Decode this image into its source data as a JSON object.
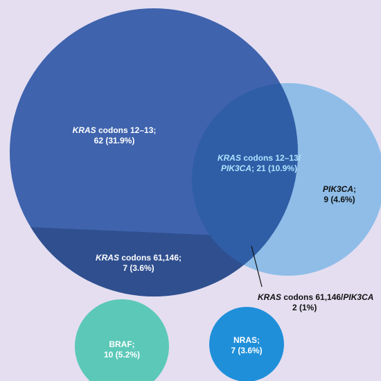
{
  "colors": {
    "background": "#e4def0",
    "kras_12_13": "#3f63ad",
    "kras_61_146": "#2f4f8f",
    "pik3ca": "#8fbde8",
    "overlap": "#2f5ea6",
    "braf": "#5cc8b8",
    "nras": "#1f8fd9"
  },
  "regions": {
    "kras_12_13": {
      "gene": "KRAS",
      "rest": " codons 12–13;",
      "count": "62 (31.9%)"
    },
    "overlap_12_13_pik3ca": {
      "gene1": "KRAS",
      "mid": " codons 12–13/",
      "gene2": "PIK3CA",
      "rest": "; 21 (10.9%)"
    },
    "pik3ca": {
      "gene": "PIK3CA",
      "rest": ";",
      "count": "9 (4.6%)"
    },
    "kras_61_146": {
      "gene": "KRAS",
      "rest": " codons 61,146;",
      "count": "7 (3.6%)"
    },
    "overlap_61_146_pik3ca": {
      "gene1": "KRAS",
      "mid": " codons 61,146/",
      "gene2": "PIK3CA",
      "count": "2 (1%)"
    },
    "braf": {
      "name": "BRAF;",
      "count": "10 (5.2%)"
    },
    "nras": {
      "name": "NRAS;",
      "count": "7 (3.6%)"
    }
  }
}
